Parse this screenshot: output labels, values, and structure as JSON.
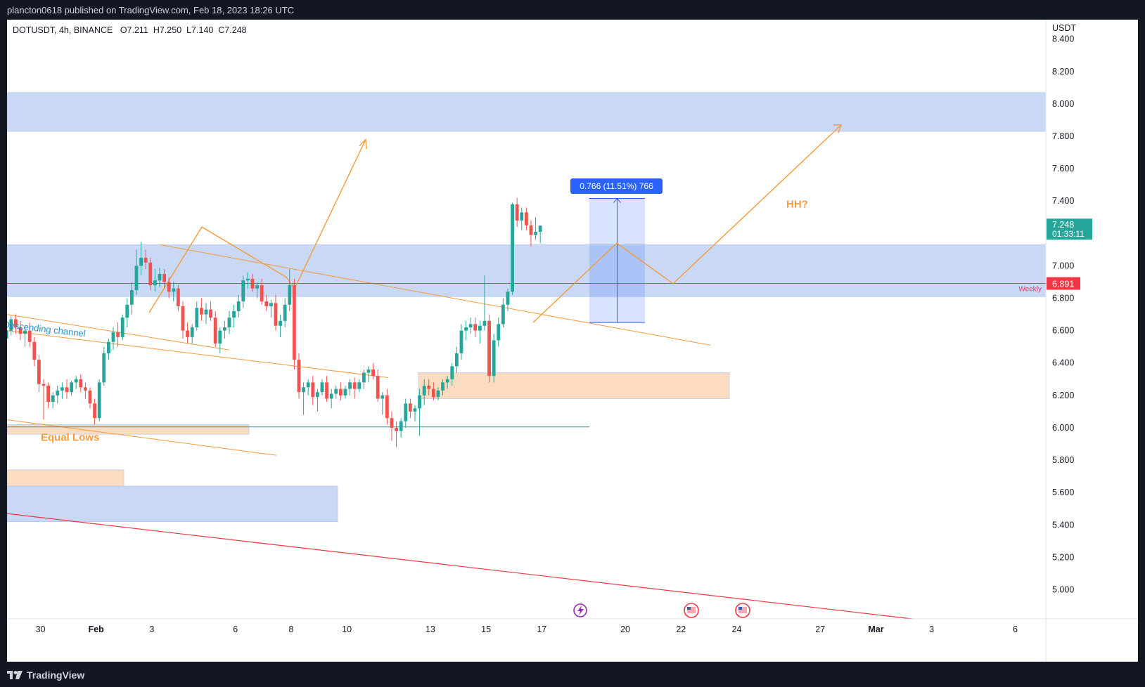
{
  "header": {
    "published": "plancton0618 published on TradingView.com, Feb 18, 2023 18:26 UTC"
  },
  "footer": {
    "brand": "TradingView"
  },
  "legend": {
    "symbol": "DOTUSDT, 4h, BINANCE",
    "open": "O7.211",
    "high": "H7.250",
    "low": "L7.140",
    "close": "C7.248"
  },
  "colors": {
    "up": "#26a69a",
    "down": "#ef5350",
    "zone_blue": "#c8d8f5",
    "zone_orange": "#fcdcc0",
    "orange_line": "#f59b3b",
    "red_line": "#f23645",
    "measure_blue": "#2962ff"
  },
  "chart_data": {
    "type": "candlestick",
    "symbol": "DOTUSDT",
    "interval": "4h",
    "exchange": "BINANCE",
    "y_axis": {
      "unit": "USDT",
      "ticks": [
        8.4,
        8.2,
        8.0,
        7.8,
        7.6,
        7.4,
        7.2,
        7.0,
        6.8,
        6.6,
        6.4,
        6.2,
        6.0,
        5.8,
        5.6,
        5.4,
        5.2,
        5.0
      ],
      "tick_labels": [
        "8.400",
        "8.200",
        "8.000",
        "7.800",
        "7.600",
        "7.400",
        "7.200",
        "7.000",
        "6.800",
        "6.600",
        "6.400",
        "6.200",
        "6.000",
        "5.800",
        "5.600",
        "5.400",
        "5.200",
        "5.000"
      ],
      "range": [
        4.82,
        8.52
      ]
    },
    "x_axis": {
      "range_days": [
        -3.2,
        34.1
      ],
      "ticks": [
        {
          "label": "30",
          "day": -2
        },
        {
          "label": "Feb",
          "day": 0
        },
        {
          "label": "3",
          "day": 2
        },
        {
          "label": "6",
          "day": 5
        },
        {
          "label": "8",
          "day": 7
        },
        {
          "label": "10",
          "day": 9
        },
        {
          "label": "13",
          "day": 12
        },
        {
          "label": "15",
          "day": 14
        },
        {
          "label": "17",
          "day": 16
        },
        {
          "label": "20",
          "day": 19
        },
        {
          "label": "22",
          "day": 21
        },
        {
          "label": "24",
          "day": 23
        },
        {
          "label": "27",
          "day": 26
        },
        {
          "label": "Mar",
          "day": 28
        },
        {
          "label": "3",
          "day": 30
        },
        {
          "label": "6",
          "day": 33
        }
      ]
    },
    "current_price": {
      "value": 7.248,
      "label": "7.248",
      "countdown": "01:33:11"
    },
    "weekly_level": {
      "value": 6.891,
      "label": "6.891",
      "tag": "Weekly"
    },
    "measure": {
      "from": 6.65,
      "to": 7.416,
      "label": "0.766 (11.51%) 766"
    },
    "annotations": {
      "channel": "Descending channel",
      "equal_lows": "Equal Lows",
      "hh": "HH?"
    },
    "candles_ohlc": [
      [
        6.55,
        6.63,
        6.52,
        6.6
      ],
      [
        6.6,
        6.69,
        6.57,
        6.67
      ],
      [
        6.67,
        6.7,
        6.58,
        6.62
      ],
      [
        6.62,
        6.66,
        6.54,
        6.58
      ],
      [
        6.58,
        6.63,
        6.5,
        6.6
      ],
      [
        6.6,
        6.65,
        6.5,
        6.53
      ],
      [
        6.53,
        6.56,
        6.38,
        6.42
      ],
      [
        6.42,
        6.45,
        6.22,
        6.27
      ],
      [
        6.27,
        6.3,
        6.05,
        6.26
      ],
      [
        6.26,
        6.28,
        6.12,
        6.16
      ],
      [
        6.16,
        6.22,
        6.12,
        6.2
      ],
      [
        6.2,
        6.26,
        6.15,
        6.23
      ],
      [
        6.23,
        6.28,
        6.18,
        6.25
      ],
      [
        6.25,
        6.3,
        6.18,
        6.22
      ],
      [
        6.22,
        6.29,
        6.2,
        6.28
      ],
      [
        6.28,
        6.32,
        6.24,
        6.3
      ],
      [
        6.3,
        6.33,
        6.22,
        6.25
      ],
      [
        6.25,
        6.28,
        6.18,
        6.23
      ],
      [
        6.23,
        6.25,
        6.12,
        6.15
      ],
      [
        6.15,
        6.18,
        6.02,
        6.06
      ],
      [
        6.06,
        6.3,
        6.04,
        6.28
      ],
      [
        6.28,
        6.5,
        6.26,
        6.46
      ],
      [
        6.46,
        6.55,
        6.42,
        6.53
      ],
      [
        6.53,
        6.62,
        6.48,
        6.59
      ],
      [
        6.59,
        6.65,
        6.5,
        6.56
      ],
      [
        6.56,
        6.7,
        6.54,
        6.68
      ],
      [
        6.68,
        6.8,
        6.62,
        6.76
      ],
      [
        6.76,
        6.9,
        6.7,
        6.85
      ],
      [
        6.85,
        7.1,
        6.82,
        7.0
      ],
      [
        7.0,
        7.15,
        6.94,
        7.05
      ],
      [
        7.05,
        7.1,
        6.98,
        7.02
      ],
      [
        7.02,
        7.05,
        6.85,
        6.88
      ],
      [
        6.88,
        6.98,
        6.84,
        6.91
      ],
      [
        6.91,
        6.99,
        6.87,
        6.95
      ],
      [
        6.95,
        6.98,
        6.86,
        6.9
      ],
      [
        6.9,
        6.93,
        6.8,
        6.84
      ],
      [
        6.84,
        6.9,
        6.78,
        6.86
      ],
      [
        6.86,
        6.88,
        6.72,
        6.75
      ],
      [
        6.75,
        6.78,
        6.55,
        6.6
      ],
      [
        6.6,
        6.65,
        6.52,
        6.56
      ],
      [
        6.56,
        6.64,
        6.52,
        6.62
      ],
      [
        6.62,
        6.78,
        6.6,
        6.74
      ],
      [
        6.74,
        6.8,
        6.66,
        6.7
      ],
      [
        6.7,
        6.77,
        6.64,
        6.73
      ],
      [
        6.73,
        6.78,
        6.66,
        6.68
      ],
      [
        6.68,
        6.72,
        6.5,
        6.52
      ],
      [
        6.52,
        6.62,
        6.46,
        6.6
      ],
      [
        6.6,
        6.66,
        6.55,
        6.62
      ],
      [
        6.62,
        6.72,
        6.58,
        6.68
      ],
      [
        6.68,
        6.76,
        6.62,
        6.72
      ],
      [
        6.72,
        6.82,
        6.68,
        6.78
      ],
      [
        6.78,
        6.94,
        6.74,
        6.91
      ],
      [
        6.91,
        6.96,
        6.86,
        6.92
      ],
      [
        6.92,
        6.95,
        6.84,
        6.86
      ],
      [
        6.86,
        6.9,
        6.8,
        6.88
      ],
      [
        6.88,
        6.92,
        6.76,
        6.78
      ],
      [
        6.78,
        6.82,
        6.72,
        6.75
      ],
      [
        6.75,
        6.79,
        6.68,
        6.77
      ],
      [
        6.77,
        6.82,
        6.6,
        6.63
      ],
      [
        6.63,
        6.7,
        6.56,
        6.66
      ],
      [
        6.66,
        6.8,
        6.62,
        6.76
      ],
      [
        6.76,
        6.98,
        6.72,
        6.88
      ],
      [
        6.88,
        6.92,
        6.36,
        6.42
      ],
      [
        6.42,
        6.46,
        6.18,
        6.22
      ],
      [
        6.22,
        6.28,
        6.08,
        6.25
      ],
      [
        6.25,
        6.3,
        6.2,
        6.28
      ],
      [
        6.28,
        6.32,
        6.14,
        6.19
      ],
      [
        6.19,
        6.24,
        6.1,
        6.22
      ],
      [
        6.22,
        6.3,
        6.2,
        6.28
      ],
      [
        6.28,
        6.32,
        6.16,
        6.18
      ],
      [
        6.18,
        6.24,
        6.12,
        6.21
      ],
      [
        6.21,
        6.26,
        6.18,
        6.24
      ],
      [
        6.24,
        6.28,
        6.17,
        6.2
      ],
      [
        6.2,
        6.26,
        6.18,
        6.24
      ],
      [
        6.24,
        6.3,
        6.2,
        6.28
      ],
      [
        6.28,
        6.31,
        6.18,
        6.24
      ],
      [
        6.24,
        6.3,
        6.22,
        6.28
      ],
      [
        6.28,
        6.36,
        6.24,
        6.34
      ],
      [
        6.34,
        6.38,
        6.28,
        6.36
      ],
      [
        6.36,
        6.4,
        6.3,
        6.32
      ],
      [
        6.32,
        6.36,
        6.16,
        6.18
      ],
      [
        6.18,
        6.22,
        6.08,
        6.2
      ],
      [
        6.2,
        6.24,
        6.02,
        6.06
      ],
      [
        6.06,
        6.1,
        5.92,
        6.0
      ],
      [
        6.0,
        6.04,
        5.88,
        5.98
      ],
      [
        5.98,
        6.06,
        5.94,
        6.04
      ],
      [
        6.04,
        6.18,
        6.0,
        6.15
      ],
      [
        6.15,
        6.18,
        6.06,
        6.1
      ],
      [
        6.1,
        6.14,
        6.04,
        6.12
      ],
      [
        6.12,
        6.24,
        5.95,
        6.2
      ],
      [
        6.2,
        6.3,
        6.14,
        6.26
      ],
      [
        6.26,
        6.3,
        6.2,
        6.24
      ],
      [
        6.24,
        6.28,
        6.17,
        6.19
      ],
      [
        6.19,
        6.25,
        6.17,
        6.23
      ],
      [
        6.23,
        6.3,
        6.2,
        6.28
      ],
      [
        6.28,
        6.32,
        6.24,
        6.3
      ],
      [
        6.3,
        6.4,
        6.26,
        6.38
      ],
      [
        6.38,
        6.5,
        6.34,
        6.46
      ],
      [
        6.46,
        6.64,
        6.42,
        6.6
      ],
      [
        6.6,
        6.66,
        6.54,
        6.62
      ],
      [
        6.62,
        6.68,
        6.58,
        6.64
      ],
      [
        6.64,
        6.68,
        6.56,
        6.6
      ],
      [
        6.6,
        6.66,
        6.52,
        6.63
      ],
      [
        6.63,
        6.94,
        6.6,
        6.66
      ],
      [
        6.66,
        6.7,
        6.28,
        6.32
      ],
      [
        6.32,
        6.58,
        6.28,
        6.54
      ],
      [
        6.54,
        6.68,
        6.5,
        6.64
      ],
      [
        6.64,
        6.8,
        6.62,
        6.76
      ],
      [
        6.76,
        6.86,
        6.72,
        6.84
      ],
      [
        6.84,
        7.39,
        6.82,
        7.38
      ],
      [
        7.38,
        7.42,
        7.24,
        7.28
      ],
      [
        7.28,
        7.36,
        7.22,
        7.33
      ],
      [
        7.33,
        7.36,
        7.22,
        7.25
      ],
      [
        7.25,
        7.28,
        7.12,
        7.19
      ],
      [
        7.19,
        7.3,
        7.16,
        7.21
      ],
      [
        7.21,
        7.25,
        7.14,
        7.248
      ]
    ]
  }
}
